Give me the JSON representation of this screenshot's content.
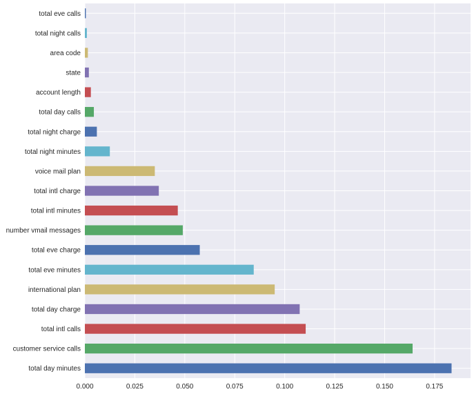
{
  "chart_data": {
    "type": "bar",
    "orientation": "horizontal",
    "categories": [
      "total day minutes",
      "customer service calls",
      "total intl calls",
      "total day charge",
      "international plan",
      "total eve minutes",
      "total eve charge",
      "number vmail messages",
      "total intl minutes",
      "total intl charge",
      "voice mail plan",
      "total night minutes",
      "total night charge",
      "total day calls",
      "account length",
      "state",
      "area code",
      "total night calls",
      "total eve calls"
    ],
    "values": [
      0.1835,
      0.164,
      0.1105,
      0.1075,
      0.095,
      0.0845,
      0.0575,
      0.049,
      0.0465,
      0.037,
      0.035,
      0.0125,
      0.006,
      0.0045,
      0.003,
      0.002,
      0.0015,
      0.001,
      0.0005
    ],
    "bar_colors": [
      "#4c72b0",
      "#55a868",
      "#c44e52",
      "#8172b2",
      "#ccb974",
      "#64b5cd"
    ],
    "xticks": [
      "0.000",
      "0.025",
      "0.050",
      "0.075",
      "0.100",
      "0.125",
      "0.150",
      "0.175"
    ],
    "xlim": [
      0,
      0.193
    ],
    "grid": true,
    "plot_background": "#eaeaf2",
    "grid_color": "#ffffff"
  }
}
